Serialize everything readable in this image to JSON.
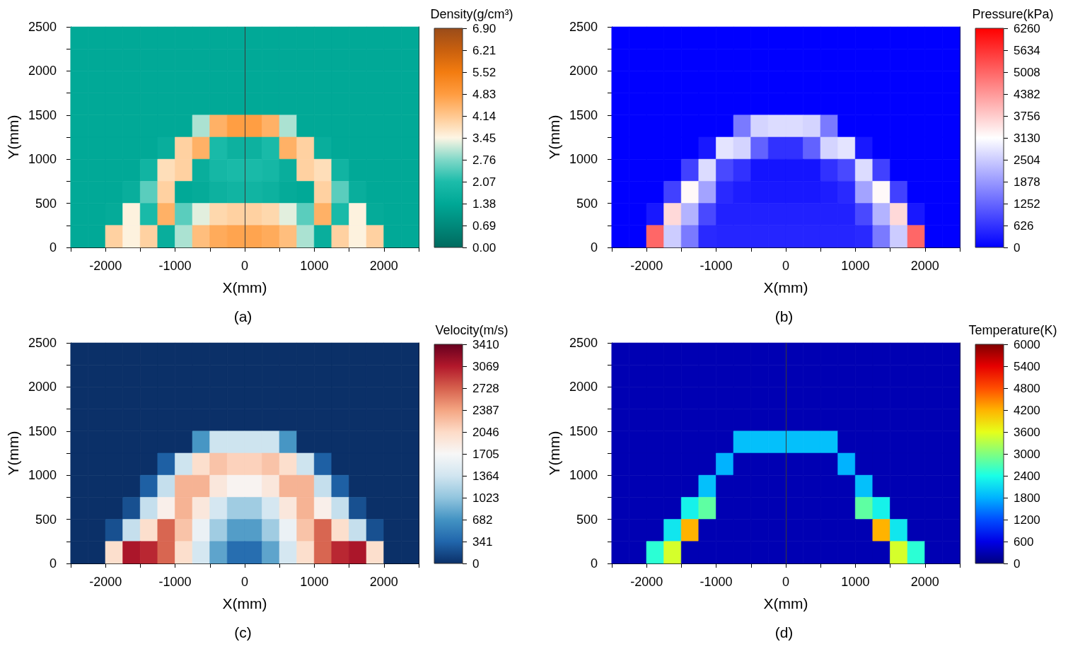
{
  "chart_data": [
    {
      "type": "scatter",
      "marker": "square",
      "title": "(a)",
      "xlabel": "X(mm)",
      "ylabel": "Y(mm)",
      "clabel": "Density(g/cm³)",
      "x": [
        -2375,
        -2125,
        -1875,
        -1625,
        -1375,
        -1125,
        -875,
        -625,
        -375,
        -125,
        125,
        375,
        625,
        875,
        1125,
        1375,
        1625,
        1875,
        2125,
        2375,
        -2375,
        -2125,
        -1875,
        -1625,
        -1375,
        -1125,
        -875,
        -625,
        -375,
        -125,
        125,
        375,
        625,
        875,
        1125,
        1375,
        1625,
        1875,
        2125,
        2375,
        -2375,
        -2125,
        -1875,
        -1625,
        -1375,
        -1125,
        -875,
        -625,
        -375,
        -125,
        125,
        375,
        625,
        875,
        1125,
        1375,
        1625,
        1875,
        2125,
        2375,
        -2375,
        -2125,
        -1875,
        -1625,
        -1375,
        -1125,
        -875,
        -625,
        -375,
        -125,
        125,
        375,
        625,
        875,
        1125,
        1375,
        1625,
        1875,
        2125,
        2375,
        -2375,
        -2125,
        -1875,
        -1625,
        -1375,
        -1125,
        -875,
        -625,
        -375,
        -125,
        125,
        375,
        625,
        875,
        1125,
        1375,
        1625,
        1875,
        2125,
        2375,
        -2375,
        -2125,
        -1875,
        -1625,
        -1375,
        -1125,
        -875,
        -625,
        -375,
        -125,
        125,
        375,
        625,
        875,
        1125,
        1375,
        1625,
        1875,
        2125,
        2375,
        -2375,
        -2125,
        -1875,
        -1625,
        -1375,
        -1125,
        -875,
        -625,
        -375,
        -125,
        125,
        375,
        625,
        875,
        1125,
        1375,
        1625,
        1875,
        2125,
        2375,
        -2375,
        -2125,
        -1875,
        -1625,
        -1375,
        -1125,
        -875,
        -625,
        -375,
        -125,
        125,
        375,
        625,
        875,
        1125,
        1375,
        1625,
        1875,
        2125,
        2375,
        -2375,
        -2125,
        -1875,
        -1625,
        -1375,
        -1125,
        -875,
        -625,
        -375,
        -125,
        125,
        375,
        625,
        875,
        1125,
        1375,
        1625,
        1875,
        2125,
        2375,
        -2375,
        -2125,
        -1875,
        -1625,
        -1375,
        -1125,
        -875,
        -625,
        -375,
        -125,
        125,
        375,
        625,
        875,
        1125,
        1375,
        1625,
        1875,
        2125,
        2375
      ],
      "values": [
        2375,
        2375,
        2375,
        2375,
        2375,
        2375,
        2375,
        2375,
        2375,
        2375,
        2375,
        2375,
        2375,
        2375,
        2375,
        2375,
        2375,
        2375,
        2375,
        2375,
        2125,
        2125,
        2125,
        2125,
        2125,
        2125,
        2125,
        2125,
        2125,
        2125,
        2125,
        2125,
        2125,
        2125,
        2125,
        2125,
        2125,
        2125,
        2125,
        2125,
        1875,
        1875,
        1875,
        1875,
        1875,
        1875,
        1875,
        1875,
        1875,
        1875,
        1875,
        1875,
        1875,
        1875,
        1875,
        1875,
        1875,
        1875,
        1875,
        1875,
        1625,
        1625,
        1625,
        1625,
        1625,
        1625,
        1625,
        1625,
        1625,
        1625,
        1625,
        1625,
        1625,
        1625,
        1625,
        1625,
        1625,
        1625,
        1625,
        1625,
        1375,
        1375,
        1375,
        1375,
        1375,
        1375,
        1375,
        1375,
        1375,
        1375,
        1375,
        1375,
        1375,
        1375,
        1375,
        1375,
        1375,
        1375,
        1375,
        1375,
        1125,
        1125,
        1125,
        1125,
        1125,
        1125,
        1125,
        1125,
        1125,
        1125,
        1125,
        1125,
        1125,
        1125,
        1125,
        1125,
        1125,
        1125,
        1125,
        1125,
        875,
        875,
        875,
        875,
        875,
        875,
        875,
        875,
        875,
        875,
        875,
        875,
        875,
        875,
        875,
        875,
        875,
        875,
        875,
        875,
        625,
        625,
        625,
        625,
        625,
        625,
        625,
        625,
        625,
        625,
        625,
        625,
        625,
        625,
        625,
        625,
        625,
        625,
        625,
        625,
        375,
        375,
        375,
        375,
        375,
        375,
        375,
        375,
        375,
        375,
        375,
        375,
        375,
        375,
        375,
        375,
        375,
        375,
        375,
        375,
        125,
        125,
        125,
        125,
        125,
        125,
        125,
        125,
        125,
        125,
        125,
        125,
        125,
        125,
        125,
        125,
        125,
        125,
        125,
        125
      ],
      "cvalues": [
        1.4,
        1.4,
        1.4,
        1.4,
        1.4,
        1.4,
        1.4,
        1.4,
        1.4,
        1.4,
        1.4,
        1.4,
        1.4,
        1.4,
        1.4,
        1.4,
        1.4,
        1.4,
        1.4,
        1.4,
        1.4,
        1.4,
        1.4,
        1.4,
        1.4,
        1.4,
        1.4,
        1.4,
        1.4,
        1.4,
        1.4,
        1.4,
        1.4,
        1.4,
        1.4,
        1.4,
        1.4,
        1.4,
        1.4,
        1.4,
        1.4,
        1.4,
        1.4,
        1.4,
        1.4,
        1.4,
        1.4,
        1.4,
        1.4,
        1.4,
        1.4,
        1.4,
        1.4,
        1.4,
        1.4,
        1.4,
        1.4,
        1.4,
        1.4,
        1.4,
        1.4,
        1.4,
        1.4,
        1.4,
        1.4,
        1.4,
        1.4,
        1.4,
        1.4,
        1.4,
        1.4,
        1.4,
        1.4,
        1.4,
        1.4,
        1.4,
        1.4,
        1.4,
        1.4,
        1.4,
        1.4,
        1.4,
        1.4,
        1.4,
        1.4,
        1.4,
        1.4,
        3.0,
        4.5,
        4.8,
        4.8,
        4.5,
        3.0,
        1.4,
        1.4,
        1.4,
        1.4,
        1.4,
        1.4,
        1.4,
        1.4,
        1.4,
        1.4,
        1.4,
        1.4,
        1.6,
        4.0,
        4.5,
        2.0,
        1.7,
        1.7,
        2.0,
        4.5,
        4.0,
        1.6,
        1.4,
        1.4,
        1.4,
        1.4,
        1.4,
        1.4,
        1.4,
        1.4,
        1.4,
        1.8,
        3.8,
        4.0,
        1.6,
        1.9,
        2.0,
        2.0,
        1.9,
        1.6,
        4.0,
        3.8,
        1.8,
        1.4,
        1.4,
        1.4,
        1.4,
        1.4,
        1.4,
        1.4,
        1.6,
        2.5,
        4.0,
        1.4,
        1.5,
        1.7,
        1.8,
        1.8,
        1.7,
        1.5,
        1.4,
        4.0,
        2.5,
        1.6,
        1.4,
        1.4,
        1.4,
        1.4,
        1.4,
        1.5,
        3.5,
        2.0,
        4.5,
        2.5,
        3.3,
        3.9,
        4.0,
        4.0,
        3.9,
        3.3,
        2.5,
        4.5,
        2.0,
        3.5,
        1.5,
        1.4,
        1.4,
        1.4,
        1.4,
        4.0,
        3.5,
        4.0,
        1.6,
        3.0,
        4.3,
        4.6,
        4.7,
        4.7,
        4.6,
        4.3,
        3.0,
        1.6,
        4.0,
        3.5,
        4.0,
        1.4,
        1.4
      ],
      "xlim": [
        -2500,
        2500
      ],
      "xticks": [
        {
          "value": -2500,
          "label": null
        },
        -2000,
        {
          "value": -1500,
          "label": null
        },
        -1000,
        {
          "value": -500,
          "label": null
        },
        0,
        {
          "value": 500,
          "label": null
        },
        1000,
        {
          "value": 1500,
          "label": null
        },
        2000,
        {
          "value": 2500,
          "label": null
        }
      ],
      "ylim": [
        0,
        2500
      ],
      "yticks": [
        0,
        {
          "value": 250,
          "label": null
        },
        500,
        {
          "value": 750,
          "label": null
        },
        1000,
        {
          "value": 1250,
          "label": null
        },
        1500,
        {
          "value": 1750,
          "label": null
        },
        2000,
        {
          "value": 2250,
          "label": null
        },
        2500
      ],
      "clim": [
        0,
        6.9
      ],
      "cticks": [
        {
          "value": 0,
          "label": "0.00"
        },
        0.69,
        1.38,
        2.07,
        2.76,
        3.45,
        4.14,
        4.83,
        5.52,
        6.21,
        {
          "value": 6.9,
          "label": "6.90"
        }
      ],
      "ref_lines": [
        {
          "axis": "x",
          "value": 0,
          "color": "#3a3a3a"
        }
      ]
    },
    {
      "type": "scatter",
      "marker": "square",
      "title": "(b)",
      "xlabel": "X(mm)",
      "ylabel": "Y(mm)",
      "clabel": "Pressure(kPa)",
      "x": [
        -2375,
        -2125,
        -1875,
        -1625,
        -1375,
        -1125,
        -875,
        -625,
        -375,
        -125,
        125,
        375,
        625,
        875,
        1125,
        1375,
        1625,
        1875,
        2125,
        2375,
        -2375,
        -2125,
        -1875,
        -1625,
        -1375,
        -1125,
        -875,
        -625,
        -375,
        -125,
        125,
        375,
        625,
        875,
        1125,
        1375,
        1625,
        1875,
        2125,
        2375,
        -2375,
        -2125,
        -1875,
        -1625,
        -1375,
        -1125,
        -875,
        -625,
        -375,
        -125,
        125,
        375,
        625,
        875,
        1125,
        1375,
        1625,
        1875,
        2125,
        2375,
        -2375,
        -2125,
        -1875,
        -1625,
        -1375,
        -1125,
        -875,
        -625,
        -375,
        -125,
        125,
        375,
        625,
        875,
        1125,
        1375,
        1625,
        1875,
        2125,
        2375,
        -2375,
        -2125,
        -1875,
        -1625,
        -1375,
        -1125,
        -875,
        -625,
        -375,
        -125,
        125,
        375,
        625,
        875,
        1125,
        1375,
        1625,
        1875,
        2125,
        2375,
        -2375,
        -2125,
        -1875,
        -1625,
        -1375,
        -1125,
        -875,
        -625,
        -375,
        -125,
        125,
        375,
        625,
        875,
        1125,
        1375,
        1625,
        1875,
        2125,
        2375,
        -2375,
        -2125,
        -1875,
        -1625,
        -1375,
        -1125,
        -875,
        -625,
        -375,
        -125,
        125,
        375,
        625,
        875,
        1125,
        1375,
        1625,
        1875,
        2125,
        2375,
        -2375,
        -2125,
        -1875,
        -1625,
        -1375,
        -1125,
        -875,
        -625,
        -375,
        -125,
        125,
        375,
        625,
        875,
        1125,
        1375,
        1625,
        1875,
        2125,
        2375,
        -2375,
        -2125,
        -1875,
        -1625,
        -1375,
        -1125,
        -875,
        -625,
        -375,
        -125,
        125,
        375,
        625,
        875,
        1125,
        1375,
        1625,
        1875,
        2125,
        2375,
        -2375,
        -2125,
        -1875,
        -1625,
        -1375,
        -1125,
        -875,
        -625,
        -375,
        -125,
        125,
        375,
        625,
        875,
        1125,
        1375,
        1625,
        1875,
        2125,
        2375
      ],
      "values": [
        2375,
        2375,
        2375,
        2375,
        2375,
        2375,
        2375,
        2375,
        2375,
        2375,
        2375,
        2375,
        2375,
        2375,
        2375,
        2375,
        2375,
        2375,
        2375,
        2375,
        2125,
        2125,
        2125,
        2125,
        2125,
        2125,
        2125,
        2125,
        2125,
        2125,
        2125,
        2125,
        2125,
        2125,
        2125,
        2125,
        2125,
        2125,
        2125,
        2125,
        1875,
        1875,
        1875,
        1875,
        1875,
        1875,
        1875,
        1875,
        1875,
        1875,
        1875,
        1875,
        1875,
        1875,
        1875,
        1875,
        1875,
        1875,
        1875,
        1875,
        1625,
        1625,
        1625,
        1625,
        1625,
        1625,
        1625,
        1625,
        1625,
        1625,
        1625,
        1625,
        1625,
        1625,
        1625,
        1625,
        1625,
        1625,
        1625,
        1625,
        1375,
        1375,
        1375,
        1375,
        1375,
        1375,
        1375,
        1375,
        1375,
        1375,
        1375,
        1375,
        1375,
        1375,
        1375,
        1375,
        1375,
        1375,
        1375,
        1375,
        1125,
        1125,
        1125,
        1125,
        1125,
        1125,
        1125,
        1125,
        1125,
        1125,
        1125,
        1125,
        1125,
        1125,
        1125,
        1125,
        1125,
        1125,
        1125,
        1125,
        875,
        875,
        875,
        875,
        875,
        875,
        875,
        875,
        875,
        875,
        875,
        875,
        875,
        875,
        875,
        875,
        875,
        875,
        875,
        875,
        625,
        625,
        625,
        625,
        625,
        625,
        625,
        625,
        625,
        625,
        625,
        625,
        625,
        625,
        625,
        625,
        625,
        625,
        625,
        625,
        375,
        375,
        375,
        375,
        375,
        375,
        375,
        375,
        375,
        375,
        375,
        375,
        375,
        375,
        375,
        375,
        375,
        375,
        375,
        375,
        125,
        125,
        125,
        125,
        125,
        125,
        125,
        125,
        125,
        125,
        125,
        125,
        125,
        125,
        125,
        125,
        125,
        125,
        125,
        125
      ],
      "cvalues": [
        0,
        0,
        0,
        0,
        0,
        0,
        0,
        0,
        0,
        0,
        0,
        0,
        0,
        0,
        0,
        0,
        0,
        0,
        0,
        0,
        0,
        0,
        0,
        0,
        0,
        0,
        0,
        0,
        0,
        0,
        0,
        0,
        0,
        0,
        0,
        0,
        0,
        0,
        0,
        0,
        0,
        0,
        0,
        0,
        0,
        0,
        0,
        0,
        0,
        0,
        0,
        0,
        0,
        0,
        0,
        0,
        0,
        0,
        0,
        0,
        0,
        0,
        0,
        0,
        0,
        0,
        0,
        0,
        0,
        0,
        0,
        0,
        0,
        0,
        0,
        0,
        0,
        0,
        0,
        0,
        0,
        0,
        0,
        0,
        0,
        0,
        0,
        1500,
        2600,
        2700,
        2700,
        2600,
        1500,
        0,
        0,
        0,
        0,
        0,
        0,
        0,
        0,
        0,
        0,
        0,
        0,
        300,
        2800,
        2600,
        1200,
        600,
        600,
        1200,
        2600,
        2800,
        300,
        0,
        0,
        0,
        0,
        0,
        0,
        0,
        0,
        0,
        800,
        2700,
        900,
        600,
        250,
        250,
        250,
        250,
        600,
        900,
        2700,
        800,
        0,
        0,
        0,
        0,
        0,
        0,
        0,
        800,
        3200,
        2000,
        500,
        350,
        300,
        300,
        300,
        300,
        350,
        500,
        2000,
        3200,
        800,
        0,
        0,
        0,
        0,
        0,
        300,
        3600,
        2200,
        900,
        400,
        400,
        400,
        400,
        400,
        400,
        400,
        400,
        900,
        2200,
        3600,
        300,
        0,
        0,
        0,
        0,
        5000,
        2500,
        1500,
        500,
        450,
        450,
        450,
        450,
        450,
        450,
        450,
        450,
        500,
        1500,
        2500,
        5000,
        0,
        0
      ],
      "xlim": [
        -2500,
        2500
      ],
      "xticks": [
        {
          "value": -2500,
          "label": null
        },
        -2000,
        {
          "value": -1500,
          "label": null
        },
        -1000,
        {
          "value": -500,
          "label": null
        },
        0,
        {
          "value": 500,
          "label": null
        },
        1000,
        {
          "value": 1500,
          "label": null
        },
        2000,
        {
          "value": 2500,
          "label": null
        }
      ],
      "ylim": [
        0,
        2500
      ],
      "yticks": [
        0,
        {
          "value": 250,
          "label": null
        },
        500,
        {
          "value": 750,
          "label": null
        },
        1000,
        {
          "value": 1250,
          "label": null
        },
        1500,
        {
          "value": 1750,
          "label": null
        },
        2000,
        {
          "value": 2250,
          "label": null
        },
        2500
      ],
      "clim": [
        0,
        6260
      ],
      "cticks": [
        0,
        626,
        1252,
        1878,
        2504,
        3130,
        3756,
        4382,
        5008,
        5634,
        6260
      ]
    },
    {
      "type": "scatter",
      "marker": "square",
      "title": "(c)",
      "xlabel": "X(mm)",
      "ylabel": "Y(mm)",
      "clabel": "Velocity(m/s)",
      "x": [
        -2375,
        -2125,
        -1875,
        -1625,
        -1375,
        -1125,
        -875,
        -625,
        -375,
        -125,
        125,
        375,
        625,
        875,
        1125,
        1375,
        1625,
        1875,
        2125,
        2375,
        -2375,
        -2125,
        -1875,
        -1625,
        -1375,
        -1125,
        -875,
        -625,
        -375,
        -125,
        125,
        375,
        625,
        875,
        1125,
        1375,
        1625,
        1875,
        2125,
        2375,
        -2375,
        -2125,
        -1875,
        -1625,
        -1375,
        -1125,
        -875,
        -625,
        -375,
        -125,
        125,
        375,
        625,
        875,
        1125,
        1375,
        1625,
        1875,
        2125,
        2375,
        -2375,
        -2125,
        -1875,
        -1625,
        -1375,
        -1125,
        -875,
        -625,
        -375,
        -125,
        125,
        375,
        625,
        875,
        1125,
        1375,
        1625,
        1875,
        2125,
        2375,
        -2375,
        -2125,
        -1875,
        -1625,
        -1375,
        -1125,
        -875,
        -625,
        -375,
        -125,
        125,
        375,
        625,
        875,
        1125,
        1375,
        1625,
        1875,
        2125,
        2375,
        -2375,
        -2125,
        -1875,
        -1625,
        -1375,
        -1125,
        -875,
        -625,
        -375,
        -125,
        125,
        375,
        625,
        875,
        1125,
        1375,
        1625,
        1875,
        2125,
        2375,
        -2375,
        -2125,
        -1875,
        -1625,
        -1375,
        -1125,
        -875,
        -625,
        -375,
        -125,
        125,
        375,
        625,
        875,
        1125,
        1375,
        1625,
        1875,
        2125,
        2375,
        -2375,
        -2125,
        -1875,
        -1625,
        -1375,
        -1125,
        -875,
        -625,
        -375,
        -125,
        125,
        375,
        625,
        875,
        1125,
        1375,
        1625,
        1875,
        2125,
        2375,
        -2375,
        -2125,
        -1875,
        -1625,
        -1375,
        -1125,
        -875,
        -625,
        -375,
        -125,
        125,
        375,
        625,
        875,
        1125,
        1375,
        1625,
        1875,
        2125,
        2375,
        -2375,
        -2125,
        -1875,
        -1625,
        -1375,
        -1125,
        -875,
        -625,
        -375,
        -125,
        125,
        375,
        625,
        875,
        1125,
        1375,
        1625,
        1875,
        2125,
        2375
      ],
      "values": [
        2375,
        2375,
        2375,
        2375,
        2375,
        2375,
        2375,
        2375,
        2375,
        2375,
        2375,
        2375,
        2375,
        2375,
        2375,
        2375,
        2375,
        2375,
        2375,
        2375,
        2125,
        2125,
        2125,
        2125,
        2125,
        2125,
        2125,
        2125,
        2125,
        2125,
        2125,
        2125,
        2125,
        2125,
        2125,
        2125,
        2125,
        2125,
        2125,
        2125,
        1875,
        1875,
        1875,
        1875,
        1875,
        1875,
        1875,
        1875,
        1875,
        1875,
        1875,
        1875,
        1875,
        1875,
        1875,
        1875,
        1875,
        1875,
        1875,
        1875,
        1625,
        1625,
        1625,
        1625,
        1625,
        1625,
        1625,
        1625,
        1625,
        1625,
        1625,
        1625,
        1625,
        1625,
        1625,
        1625,
        1625,
        1625,
        1625,
        1625,
        1375,
        1375,
        1375,
        1375,
        1375,
        1375,
        1375,
        1375,
        1375,
        1375,
        1375,
        1375,
        1375,
        1375,
        1375,
        1375,
        1375,
        1375,
        1375,
        1375,
        1125,
        1125,
        1125,
        1125,
        1125,
        1125,
        1125,
        1125,
        1125,
        1125,
        1125,
        1125,
        1125,
        1125,
        1125,
        1125,
        1125,
        1125,
        1125,
        1125,
        875,
        875,
        875,
        875,
        875,
        875,
        875,
        875,
        875,
        875,
        875,
        875,
        875,
        875,
        875,
        875,
        875,
        875,
        875,
        875,
        625,
        625,
        625,
        625,
        625,
        625,
        625,
        625,
        625,
        625,
        625,
        625,
        625,
        625,
        625,
        625,
        625,
        625,
        625,
        625,
        375,
        375,
        375,
        375,
        375,
        375,
        375,
        375,
        375,
        375,
        375,
        375,
        375,
        375,
        375,
        375,
        375,
        375,
        375,
        375,
        125,
        125,
        125,
        125,
        125,
        125,
        125,
        125,
        125,
        125,
        125,
        125,
        125,
        125,
        125,
        125,
        125,
        125,
        125,
        125
      ],
      "cvalues": [
        0,
        0,
        0,
        0,
        0,
        0,
        0,
        0,
        0,
        0,
        0,
        0,
        0,
        0,
        0,
        0,
        0,
        0,
        0,
        0,
        0,
        0,
        0,
        0,
        0,
        0,
        0,
        0,
        0,
        0,
        0,
        0,
        0,
        0,
        0,
        0,
        0,
        0,
        0,
        0,
        0,
        0,
        0,
        0,
        0,
        0,
        0,
        0,
        0,
        0,
        0,
        0,
        0,
        0,
        0,
        0,
        0,
        0,
        0,
        0,
        0,
        0,
        0,
        0,
        0,
        0,
        0,
        0,
        0,
        0,
        0,
        0,
        0,
        0,
        0,
        0,
        0,
        0,
        0,
        0,
        0,
        0,
        0,
        0,
        0,
        0,
        0,
        700,
        1350,
        1350,
        1350,
        1350,
        700,
        0,
        0,
        0,
        0,
        0,
        0,
        0,
        0,
        0,
        0,
        0,
        0,
        300,
        1350,
        2000,
        2200,
        2100,
        2100,
        2200,
        2000,
        1350,
        300,
        0,
        0,
        0,
        0,
        0,
        0,
        0,
        0,
        0,
        300,
        1300,
        2300,
        2300,
        1900,
        1750,
        1750,
        1900,
        2300,
        2300,
        1300,
        300,
        0,
        0,
        0,
        0,
        0,
        0,
        0,
        200,
        1300,
        1800,
        2300,
        1900,
        1400,
        1100,
        1100,
        1400,
        1900,
        2300,
        1800,
        1300,
        200,
        0,
        0,
        0,
        0,
        0,
        200,
        1300,
        2000,
        2700,
        2200,
        1600,
        1100,
        750,
        750,
        1100,
        1600,
        2200,
        2700,
        2000,
        1300,
        200,
        0,
        0,
        0,
        0,
        2000,
        3100,
        3000,
        2700,
        2000,
        1400,
        800,
        400,
        400,
        800,
        1400,
        2000,
        2700,
        3000,
        3100,
        2000,
        0,
        0
      ],
      "xlim": [
        -2500,
        2500
      ],
      "xticks": [
        {
          "value": -2500,
          "label": null
        },
        -2000,
        {
          "value": -1500,
          "label": null
        },
        -1000,
        {
          "value": -500,
          "label": null
        },
        0,
        {
          "value": 500,
          "label": null
        },
        1000,
        {
          "value": 1500,
          "label": null
        },
        2000,
        {
          "value": 2500,
          "label": null
        }
      ],
      "ylim": [
        0,
        2500
      ],
      "yticks": [
        0,
        {
          "value": 250,
          "label": null
        },
        500,
        {
          "value": 750,
          "label": null
        },
        1000,
        {
          "value": 1250,
          "label": null
        },
        1500,
        {
          "value": 1750,
          "label": null
        },
        2000,
        {
          "value": 2250,
          "label": null
        },
        2500
      ],
      "clim": [
        0,
        3410
      ],
      "cticks": [
        0,
        341,
        682,
        1023,
        1364,
        1705,
        2046,
        2387,
        2728,
        3069,
        3410
      ]
    },
    {
      "type": "scatter",
      "marker": "square",
      "title": "(d)",
      "xlabel": "X(mm)",
      "ylabel": "Y(mm)",
      "clabel": "Temperature(K)",
      "x": [
        -2375,
        -2125,
        -1875,
        -1625,
        -1375,
        -1125,
        -875,
        -625,
        -375,
        -125,
        125,
        375,
        625,
        875,
        1125,
        1375,
        1625,
        1875,
        2125,
        2375,
        -2375,
        -2125,
        -1875,
        -1625,
        -1375,
        -1125,
        -875,
        -625,
        -375,
        -125,
        125,
        375,
        625,
        875,
        1125,
        1375,
        1625,
        1875,
        2125,
        2375,
        -2375,
        -2125,
        -1875,
        -1625,
        -1375,
        -1125,
        -875,
        -625,
        -375,
        -125,
        125,
        375,
        625,
        875,
        1125,
        1375,
        1625,
        1875,
        2125,
        2375,
        -2375,
        -2125,
        -1875,
        -1625,
        -1375,
        -1125,
        -875,
        -625,
        -375,
        -125,
        125,
        375,
        625,
        875,
        1125,
        1375,
        1625,
        1875,
        2125,
        2375,
        -2375,
        -2125,
        -1875,
        -1625,
        -1375,
        -1125,
        -875,
        -625,
        -375,
        -125,
        125,
        375,
        625,
        875,
        1125,
        1375,
        1625,
        1875,
        2125,
        2375,
        -2375,
        -2125,
        -1875,
        -1625,
        -1375,
        -1125,
        -875,
        -625,
        -375,
        -125,
        125,
        375,
        625,
        875,
        1125,
        1375,
        1625,
        1875,
        2125,
        2375,
        -2375,
        -2125,
        -1875,
        -1625,
        -1375,
        -1125,
        -875,
        -625,
        -375,
        -125,
        125,
        375,
        625,
        875,
        1125,
        1375,
        1625,
        1875,
        2125,
        2375,
        -2375,
        -2125,
        -1875,
        -1625,
        -1375,
        -1125,
        -875,
        -625,
        -375,
        -125,
        125,
        375,
        625,
        875,
        1125,
        1375,
        1625,
        1875,
        2125,
        2375,
        -2375,
        -2125,
        -1875,
        -1625,
        -1375,
        -1125,
        -875,
        -625,
        -375,
        -125,
        125,
        375,
        625,
        875,
        1125,
        1375,
        1625,
        1875,
        2125,
        2375,
        -2375,
        -2125,
        -1875,
        -1625,
        -1375,
        -1125,
        -875,
        -625,
        -375,
        -125,
        125,
        375,
        625,
        875,
        1125,
        1375,
        1625,
        1875,
        2125,
        2375
      ],
      "values": [
        2375,
        2375,
        2375,
        2375,
        2375,
        2375,
        2375,
        2375,
        2375,
        2375,
        2375,
        2375,
        2375,
        2375,
        2375,
        2375,
        2375,
        2375,
        2375,
        2375,
        2125,
        2125,
        2125,
        2125,
        2125,
        2125,
        2125,
        2125,
        2125,
        2125,
        2125,
        2125,
        2125,
        2125,
        2125,
        2125,
        2125,
        2125,
        2125,
        2125,
        1875,
        1875,
        1875,
        1875,
        1875,
        1875,
        1875,
        1875,
        1875,
        1875,
        1875,
        1875,
        1875,
        1875,
        1875,
        1875,
        1875,
        1875,
        1875,
        1875,
        1625,
        1625,
        1625,
        1625,
        1625,
        1625,
        1625,
        1625,
        1625,
        1625,
        1625,
        1625,
        1625,
        1625,
        1625,
        1625,
        1625,
        1625,
        1625,
        1625,
        1375,
        1375,
        1375,
        1375,
        1375,
        1375,
        1375,
        1375,
        1375,
        1375,
        1375,
        1375,
        1375,
        1375,
        1375,
        1375,
        1375,
        1375,
        1375,
        1375,
        1125,
        1125,
        1125,
        1125,
        1125,
        1125,
        1125,
        1125,
        1125,
        1125,
        1125,
        1125,
        1125,
        1125,
        1125,
        1125,
        1125,
        1125,
        1125,
        1125,
        875,
        875,
        875,
        875,
        875,
        875,
        875,
        875,
        875,
        875,
        875,
        875,
        875,
        875,
        875,
        875,
        875,
        875,
        875,
        875,
        625,
        625,
        625,
        625,
        625,
        625,
        625,
        625,
        625,
        625,
        625,
        625,
        625,
        625,
        625,
        625,
        625,
        625,
        625,
        625,
        375,
        375,
        375,
        375,
        375,
        375,
        375,
        375,
        375,
        375,
        375,
        375,
        375,
        375,
        375,
        375,
        375,
        375,
        375,
        375,
        125,
        125,
        125,
        125,
        125,
        125,
        125,
        125,
        125,
        125,
        125,
        125,
        125,
        125,
        125,
        125,
        125,
        125,
        125,
        125
      ],
      "cvalues": [
        300,
        300,
        300,
        300,
        300,
        300,
        300,
        300,
        300,
        300,
        300,
        300,
        300,
        300,
        300,
        300,
        300,
        300,
        300,
        300,
        300,
        300,
        300,
        300,
        300,
        300,
        300,
        300,
        300,
        300,
        300,
        300,
        300,
        300,
        300,
        300,
        300,
        300,
        300,
        300,
        300,
        300,
        300,
        300,
        300,
        300,
        300,
        300,
        300,
        300,
        300,
        300,
        300,
        300,
        300,
        300,
        300,
        300,
        300,
        300,
        300,
        300,
        300,
        300,
        300,
        300,
        300,
        300,
        300,
        300,
        300,
        300,
        300,
        300,
        300,
        300,
        300,
        300,
        300,
        300,
        300,
        300,
        300,
        300,
        300,
        300,
        300,
        1900,
        1900,
        1900,
        1900,
        1900,
        1900,
        300,
        300,
        300,
        300,
        300,
        300,
        300,
        300,
        300,
        300,
        300,
        300,
        300,
        1800,
        300,
        300,
        300,
        300,
        300,
        300,
        1800,
        300,
        300,
        300,
        300,
        300,
        300,
        300,
        300,
        300,
        300,
        300,
        1900,
        300,
        300,
        300,
        300,
        300,
        300,
        300,
        300,
        1900,
        300,
        300,
        300,
        300,
        300,
        300,
        300,
        300,
        300,
        2300,
        2800,
        300,
        300,
        300,
        300,
        300,
        300,
        300,
        300,
        2800,
        2300,
        300,
        300,
        300,
        300,
        300,
        300,
        300,
        2200,
        4200,
        300,
        300,
        300,
        300,
        300,
        300,
        300,
        300,
        300,
        300,
        4200,
        2200,
        300,
        300,
        300,
        300,
        300,
        2500,
        3500,
        300,
        300,
        300,
        300,
        300,
        300,
        300,
        300,
        300,
        300,
        300,
        300,
        3500,
        2500,
        300,
        300
      ],
      "xlim": [
        -2500,
        2500
      ],
      "xticks": [
        {
          "value": -2500,
          "label": null
        },
        -2000,
        {
          "value": -1500,
          "label": null
        },
        -1000,
        {
          "value": -500,
          "label": null
        },
        0,
        {
          "value": 500,
          "label": null
        },
        1000,
        {
          "value": 1500,
          "label": null
        },
        2000,
        {
          "value": 2500,
          "label": null
        }
      ],
      "ylim": [
        0,
        2500
      ],
      "yticks": [
        0,
        {
          "value": 250,
          "label": null
        },
        500,
        {
          "value": 750,
          "label": null
        },
        1000,
        {
          "value": 1250,
          "label": null
        },
        1500,
        {
          "value": 1750,
          "label": null
        },
        2000,
        {
          "value": 2250,
          "label": null
        },
        2500
      ],
      "clim": [
        0,
        6000
      ],
      "cticks": [
        0,
        600,
        1200,
        1800,
        2400,
        3000,
        3600,
        4200,
        4800,
        5400,
        6000
      ],
      "ref_lines": [
        {
          "axis": "x",
          "value": 0,
          "color": "#3a3a3a"
        }
      ]
    }
  ]
}
